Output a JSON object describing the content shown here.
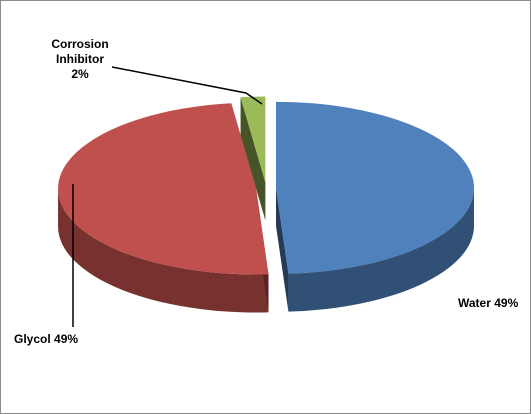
{
  "chart_data": {
    "type": "pie",
    "style": "3d-exploded",
    "slices": [
      {
        "name": "Water",
        "value": 49,
        "label": "Water 49%",
        "color": "#4f81bd"
      },
      {
        "name": "Glycol",
        "value": 49,
        "label": "Glycol 49%",
        "color": "#c0504d"
      },
      {
        "name": "Corrosion Inhibitor",
        "value": 2,
        "label_lines": [
          "Corrosion",
          "Inhibitor",
          "2%"
        ],
        "color": "#9bbb59"
      }
    ],
    "legend": "none"
  }
}
